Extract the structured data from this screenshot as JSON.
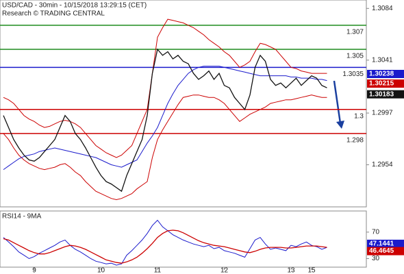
{
  "chart_data": [
    {
      "type": "line",
      "title": "USD/CAD - 30min - 10/15/2018 13:29:15 (CET)",
      "subtitle": "Research © TRADING CENTRAL",
      "categories": [
        null,
        null,
        null,
        null,
        null,
        null,
        "9",
        null,
        null,
        null,
        null,
        null,
        null,
        null,
        null,
        null,
        null,
        null,
        null,
        "10",
        null,
        null,
        null,
        null,
        null,
        null,
        null,
        null,
        null,
        null,
        "11",
        null,
        null,
        null,
        null,
        null,
        null,
        null,
        null,
        null,
        null,
        null,
        null,
        "12",
        null,
        null,
        null,
        null,
        null,
        null,
        null,
        null,
        null,
        null,
        null,
        null,
        "13",
        null,
        null,
        null,
        "15",
        null,
        null,
        null
      ],
      "ylim": [
        1.2919,
        1.3091
      ],
      "yticks": [
        1.3084,
        1.3041,
        1.2997,
        1.2954
      ],
      "series": [
        {
          "color": "#cc0000",
          "values": [
            1.301,
            1.3008,
            1.3005,
            1.3,
            1.2995,
            1.2992,
            1.299,
            1.2987,
            1.2985,
            1.2986,
            1.2988,
            1.299,
            1.2991,
            1.299,
            1.2988,
            1.2985,
            1.298,
            1.2975,
            1.297,
            1.2967,
            1.2964,
            1.2962,
            1.296,
            1.2962,
            1.2966,
            1.297,
            1.298,
            1.299,
            1.3,
            1.303,
            1.306,
            1.3068,
            1.3075,
            1.3074,
            1.3073,
            1.3072,
            1.307,
            1.3068,
            1.3065,
            1.3062,
            1.3058,
            1.3055,
            1.3052,
            1.3048,
            1.3045,
            1.304,
            1.3035,
            1.3037,
            1.304,
            1.3048,
            1.3055,
            1.3054,
            1.3052,
            1.305,
            1.3045,
            1.304,
            1.3035,
            1.3034,
            1.3032,
            1.3031,
            1.303,
            1.303,
            1.303,
            1.303
          ]
        },
        {
          "color": "#cc0000",
          "values": [
            1.298,
            1.2975,
            1.2968,
            1.2962,
            1.2958,
            1.2955,
            1.2953,
            1.2951,
            1.295,
            1.2951,
            1.2952,
            1.2954,
            1.2955,
            1.2952,
            1.2948,
            1.2945,
            1.294,
            1.2936,
            1.2932,
            1.293,
            1.2928,
            1.2926,
            1.2925,
            1.2926,
            1.2928,
            1.293,
            1.2934,
            1.2937,
            1.294,
            1.296,
            1.2975,
            1.2983,
            1.299,
            1.2997,
            1.3004,
            1.301,
            1.3011,
            1.3012,
            1.3012,
            1.3011,
            1.301,
            1.301,
            1.3008,
            1.3005,
            1.3,
            1.2995,
            1.299,
            1.2993,
            1.2996,
            1.2998,
            1.3,
            1.3002,
            1.3005,
            1.3006,
            1.3007,
            1.3008,
            1.3008,
            1.3009,
            1.301,
            1.3011,
            1.3012,
            1.3011,
            1.301,
            1.301
          ]
        },
        {
          "color": "#1a1acc",
          "values": [
            1.295,
            1.2953,
            1.2956,
            1.2959,
            1.2961,
            1.2962,
            1.2963,
            1.2965,
            1.2966,
            1.2967,
            1.2968,
            1.2967,
            1.2966,
            1.2965,
            1.2964,
            1.2963,
            1.2962,
            1.2961,
            1.296,
            1.2958,
            1.2956,
            1.2954,
            1.2953,
            1.2952,
            1.2954,
            1.2956,
            1.2958,
            1.2965,
            1.2972,
            1.2978,
            1.2985,
            1.2995,
            1.3005,
            1.3013,
            1.302,
            1.3025,
            1.303,
            1.3033,
            1.3035,
            1.3036,
            1.3036,
            1.3036,
            1.3036,
            1.3035,
            1.3034,
            1.3033,
            1.3032,
            1.3031,
            1.303,
            1.3029,
            1.3028,
            1.3028,
            1.3028,
            1.3028,
            1.3028,
            1.3028,
            1.3027,
            1.3027,
            1.3026,
            1.3026,
            1.3026,
            1.3025,
            1.3025,
            1.3024
          ]
        },
        {
          "color": "#111111",
          "values": [
            1.2995,
            1.2985,
            1.2975,
            1.2968,
            1.2962,
            1.2958,
            1.2957,
            1.296,
            1.2965,
            1.297,
            1.2975,
            1.2985,
            1.2995,
            1.299,
            1.298,
            1.2975,
            1.2968,
            1.296,
            1.2952,
            1.2945,
            1.294,
            1.2938,
            1.2935,
            1.2932,
            1.2945,
            1.2955,
            1.2965,
            1.2975,
            1.2995,
            1.303,
            1.305,
            1.3045,
            1.3048,
            1.3042,
            1.3045,
            1.304,
            1.3038,
            1.303,
            1.3025,
            1.3028,
            1.3032,
            1.3025,
            1.303,
            1.302,
            1.3018,
            1.301,
            1.3005,
            1.3,
            1.3012,
            1.3035,
            1.3045,
            1.304,
            1.3025,
            1.302,
            1.3022,
            1.3018,
            1.3022,
            1.3026,
            1.302,
            1.3024,
            1.3028,
            1.3026,
            1.302,
            1.3018
          ]
        }
      ],
      "levels": [
        {
          "value": 1.307,
          "color": "#1e8c1e"
        },
        {
          "value": 1.305,
          "color": "#1e8c1e"
        },
        {
          "value": 1.3035,
          "color": "#1a1acc"
        },
        {
          "value": 1.3,
          "color": "#cc0000"
        },
        {
          "value": 1.298,
          "color": "#cc0000"
        }
      ],
      "price_tags": [
        {
          "value": 1.30238,
          "color": "#1a1acc"
        },
        {
          "value": 1.30215,
          "color": "#cc0000"
        },
        {
          "value": 1.30183,
          "color": "#111111"
        }
      ]
    },
    {
      "type": "line",
      "title": "RSI14 - 9MA",
      "ylim": [
        17,
        102
      ],
      "yticks": [
        70,
        30
      ],
      "series": [
        {
          "color": "#1a1acc",
          "values": [
            62,
            55,
            48,
            40,
            35,
            30,
            33,
            38,
            42,
            46,
            50,
            55,
            58,
            50,
            44,
            40,
            35,
            30,
            26,
            24,
            22,
            23,
            20,
            22,
            35,
            42,
            50,
            58,
            68,
            80,
            88,
            78,
            72,
            66,
            62,
            58,
            55,
            52,
            50,
            48,
            50,
            45,
            47,
            42,
            40,
            38,
            35,
            32,
            45,
            58,
            62,
            52,
            44,
            46,
            44,
            42,
            50,
            48,
            52,
            55,
            50,
            48,
            44,
            47
          ]
        },
        {
          "color": "#cc0000",
          "values": [
            60,
            58,
            54,
            50,
            46,
            42,
            39,
            37,
            37,
            39,
            42,
            45,
            48,
            50,
            49,
            47,
            44,
            40,
            36,
            32,
            28,
            26,
            24,
            23,
            25,
            28,
            32,
            38,
            45,
            53,
            62,
            68,
            72,
            73,
            72,
            69,
            65,
            61,
            57,
            54,
            52,
            50,
            49,
            48,
            46,
            44,
            42,
            40,
            39,
            41,
            44,
            46,
            47,
            47,
            47,
            46,
            46,
            47,
            48,
            49,
            49,
            49,
            48,
            47
          ]
        }
      ],
      "price_tags": [
        {
          "value": 47.1441,
          "color": "#1a1acc"
        },
        {
          "value": 46.4645,
          "color": "#cc0000"
        }
      ]
    }
  ]
}
